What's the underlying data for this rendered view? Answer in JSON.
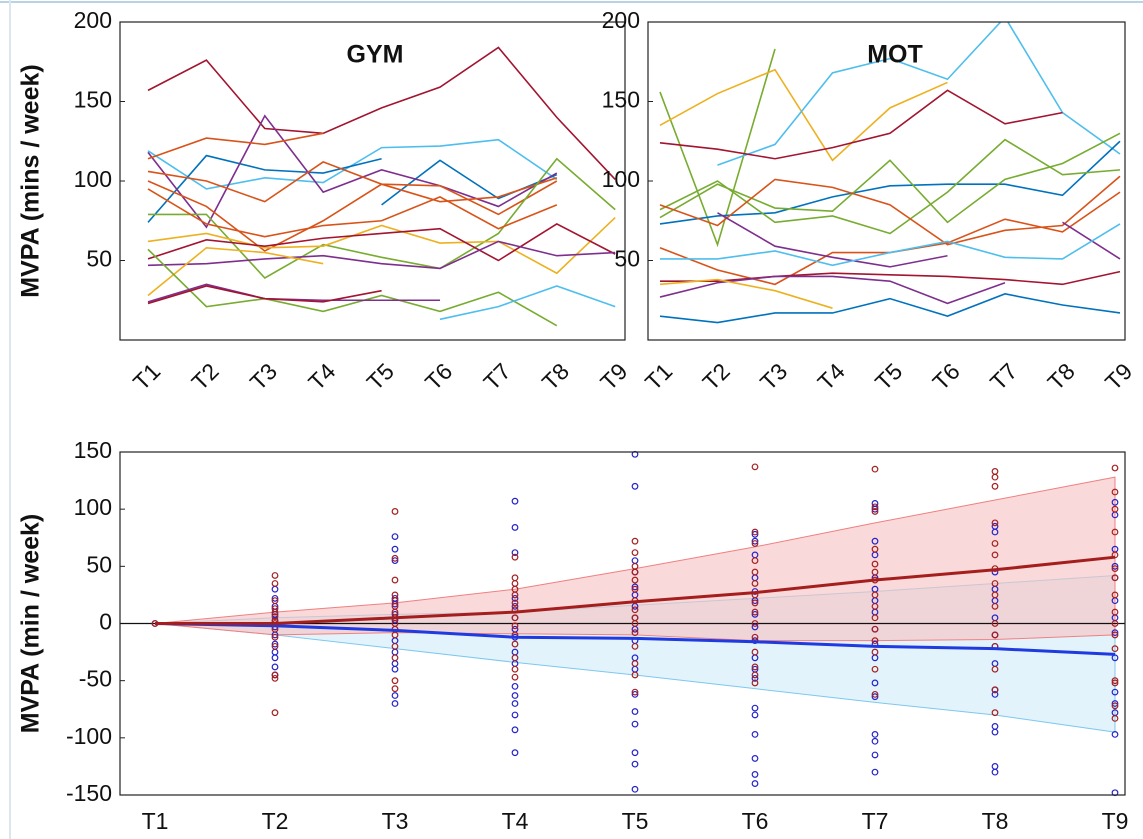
{
  "chart_data": [
    {
      "type": "line",
      "title": "GYM",
      "ylabel": "MVPA (mins / week)",
      "categories": [
        "T1",
        "T2",
        "T3",
        "T4",
        "T5",
        "T6",
        "T7",
        "T8",
        "T9"
      ],
      "ylim": [
        0,
        200
      ],
      "yticks": [
        50,
        100,
        150,
        200
      ],
      "series": [
        {
          "color": "#A2142F",
          "values": [
            157,
            176,
            133,
            130,
            146,
            159,
            184,
            140,
            101
          ]
        },
        {
          "color": "#4DBEEE",
          "values": [
            119,
            95,
            102,
            99,
            121,
            122,
            126,
            101,
            null
          ]
        },
        {
          "color": "#0072BD",
          "values": [
            74,
            116,
            107,
            105,
            114,
            null,
            null,
            null,
            null
          ]
        },
        {
          "color": "#0072BD",
          "values": [
            null,
            null,
            null,
            null,
            85,
            113,
            89,
            104,
            null
          ]
        },
        {
          "color": "#7E2F8E",
          "values": [
            118,
            71,
            141,
            93,
            107,
            97,
            84,
            105,
            null
          ]
        },
        {
          "color": "#D95319",
          "values": [
            114,
            127,
            123,
            130,
            null,
            null,
            null,
            null,
            null
          ]
        },
        {
          "color": "#D95319",
          "values": [
            106,
            100,
            87,
            112,
            98,
            97,
            79,
            100,
            null
          ]
        },
        {
          "color": "#D95319",
          "values": [
            100,
            84,
            56,
            75,
            98,
            87,
            90,
            102,
            null
          ]
        },
        {
          "color": "#77AC30",
          "values": [
            79,
            79,
            39,
            60,
            52,
            45,
            67,
            114,
            82
          ]
        },
        {
          "color": "#EDB120",
          "values": [
            62,
            67,
            58,
            59,
            72,
            61,
            62,
            42,
            77
          ]
        },
        {
          "color": "#A2142F",
          "values": [
            51,
            63,
            59,
            64,
            67,
            70,
            50,
            73,
            54
          ]
        },
        {
          "color": "#7E2F8E",
          "values": [
            47,
            48,
            51,
            53,
            48,
            45,
            62,
            53,
            55
          ]
        },
        {
          "color": "#EDB120",
          "values": [
            28,
            58,
            55,
            48,
            null,
            null,
            null,
            null,
            null
          ]
        },
        {
          "color": "#77AC30",
          "values": [
            57,
            21,
            26,
            18,
            28,
            18,
            30,
            9,
            null
          ]
        },
        {
          "color": "#7E2F8E",
          "values": [
            24,
            35,
            26,
            25,
            25,
            25,
            null,
            null,
            null
          ]
        },
        {
          "color": "#A2142F",
          "values": [
            23,
            34,
            26,
            24,
            31,
            null,
            null,
            null,
            null
          ]
        },
        {
          "color": "#4DBEEE",
          "values": [
            null,
            null,
            null,
            null,
            null,
            13,
            21,
            34,
            21
          ]
        },
        {
          "color": "#D95319",
          "values": [
            95,
            73,
            65,
            72,
            75,
            90,
            70,
            85,
            null
          ]
        }
      ]
    },
    {
      "type": "line",
      "title": "MOT",
      "categories": [
        "T1",
        "T2",
        "T3",
        "T4",
        "T5",
        "T6",
        "T7",
        "T8",
        "T9"
      ],
      "ylim": [
        0,
        200
      ],
      "yticks": [
        50,
        100,
        150,
        200
      ],
      "series": [
        {
          "color": "#77AC30",
          "values": [
            156,
            60,
            183,
            null,
            null,
            null,
            null,
            null,
            null
          ]
        },
        {
          "color": "#EDB120",
          "values": [
            135,
            155,
            170,
            113,
            146,
            162,
            null,
            null,
            null
          ]
        },
        {
          "color": "#4DBEEE",
          "values": [
            null,
            110,
            123,
            168,
            177,
            164,
            203,
            143,
            117
          ]
        },
        {
          "color": "#A2142F",
          "values": [
            124,
            120,
            114,
            121,
            130,
            157,
            136,
            143,
            null
          ]
        },
        {
          "color": "#0072BD",
          "values": [
            73,
            78,
            80,
            90,
            97,
            98,
            98,
            91,
            125
          ]
        },
        {
          "color": "#77AC30",
          "values": [
            82,
            100,
            74,
            78,
            67,
            93,
            126,
            104,
            107
          ]
        },
        {
          "color": "#77AC30",
          "values": [
            77,
            98,
            83,
            81,
            113,
            74,
            101,
            111,
            130
          ]
        },
        {
          "color": "#D95319",
          "values": [
            85,
            72,
            101,
            96,
            85,
            60,
            69,
            72,
            103
          ]
        },
        {
          "color": "#D95319",
          "values": [
            58,
            44,
            35,
            55,
            55,
            61,
            76,
            68,
            93
          ]
        },
        {
          "color": "#7E2F8E",
          "values": [
            null,
            80,
            59,
            52,
            46,
            53,
            null,
            74,
            51
          ]
        },
        {
          "color": "#4DBEEE",
          "values": [
            51,
            51,
            56,
            47,
            55,
            62,
            52,
            51,
            73
          ]
        },
        {
          "color": "#A2142F",
          "values": [
            37,
            37,
            40,
            42,
            41,
            40,
            38,
            35,
            43
          ]
        },
        {
          "color": "#7E2F8E",
          "values": [
            27,
            36,
            40,
            40,
            37,
            23,
            36,
            null,
            null
          ]
        },
        {
          "color": "#EDB120",
          "values": [
            35,
            38,
            31,
            20,
            null,
            null,
            null,
            null,
            null
          ]
        },
        {
          "color": "#0072BD",
          "values": [
            15,
            11,
            17,
            17,
            26,
            15,
            29,
            22,
            17
          ]
        }
      ]
    },
    {
      "type": "band-scatter",
      "ylabel": "MVPA (min / week)",
      "categories": [
        "T1",
        "T2",
        "T3",
        "T4",
        "T5",
        "T6",
        "T7",
        "T8",
        "T9"
      ],
      "ylim": [
        -150,
        150
      ],
      "yticks": [
        -150,
        -100,
        -50,
        0,
        50,
        100,
        150
      ],
      "zero_line": true,
      "groups": [
        {
          "color": "#2F6FD8",
          "line_color": "#1F3AE0",
          "point_color": "#2222CC",
          "band_color": "#D3ECF9",
          "edge_color": "#7CC8EE",
          "mean": [
            0,
            -2,
            -6,
            -12,
            -13,
            -16,
            -20,
            -22,
            -27
          ],
          "upper": [
            0,
            5,
            8,
            10,
            16,
            22,
            28,
            35,
            42
          ],
          "lower": [
            0,
            -10,
            -22,
            -34,
            -45,
            -57,
            -69,
            -80,
            -95
          ],
          "points": [
            [
              0
            ],
            [
              30,
              22,
              15,
              8,
              3,
              -3,
              -10,
              -18,
              -25,
              -30,
              -38,
              -45
            ],
            [
              76,
              65,
              55,
              22,
              17,
              8,
              3,
              -5,
              -15,
              -25,
              -35,
              -40,
              -63,
              -70
            ],
            [
              107,
              84,
              62,
              22,
              15,
              5,
              -5,
              -12,
              -25,
              -35,
              -55,
              -63,
              -70,
              -80,
              -93,
              -113
            ],
            [
              148,
              120,
              55,
              45,
              32,
              25,
              15,
              5,
              -5,
              -15,
              -30,
              -40,
              -62,
              -77,
              -88,
              -113,
              -123,
              -145
            ],
            [
              78,
              72,
              60,
              40,
              28,
              20,
              8,
              -3,
              -15,
              -30,
              -40,
              -48,
              -74,
              -80,
              -97,
              -118,
              -132,
              -140
            ],
            [
              105,
              100,
              72,
              60,
              40,
              30,
              20,
              10,
              -5,
              -18,
              -30,
              -52,
              -64,
              -97,
              -103,
              -115,
              -130
            ],
            [
              85,
              80,
              45,
              30,
              20,
              5,
              -10,
              -20,
              -35,
              -58,
              -62,
              -90,
              -95,
              -125,
              -130
            ],
            [
              106,
              95,
              65,
              50,
              40,
              20,
              5,
              -8,
              -30,
              -60,
              -70,
              -78,
              -97,
              -148
            ]
          ]
        },
        {
          "color": "#B22222",
          "line_color": "#A51E1E",
          "point_color": "#A51E1E",
          "band_color": "#F6C4C4",
          "edge_color": "#F08080",
          "mean": [
            0,
            0,
            5,
            10,
            19,
            27,
            38,
            47,
            58
          ],
          "upper": [
            0,
            10,
            18,
            30,
            48,
            67,
            88,
            108,
            128
          ],
          "lower": [
            0,
            -10,
            -8,
            -9,
            -10,
            -15,
            -15,
            -14,
            -10
          ],
          "points": [
            [
              0
            ],
            [
              42,
              35,
              20,
              13,
              10,
              6,
              2,
              0,
              -5,
              -12,
              -20,
              -45,
              -48,
              -78
            ],
            [
              98,
              57,
              38,
              25,
              20,
              15,
              10,
              5,
              0,
              -5,
              -10,
              -20,
              -30,
              -50,
              -57
            ],
            [
              58,
              40,
              35,
              30,
              25,
              18,
              12,
              5,
              -2,
              -10,
              -18,
              -30,
              -40,
              -47
            ],
            [
              72,
              62,
              50,
              45,
              38,
              30,
              20,
              12,
              5,
              0,
              -8,
              -20,
              -35,
              -45,
              -60
            ],
            [
              137,
              80,
              70,
              55,
              45,
              35,
              25,
              18,
              10,
              0,
              -12,
              -25,
              -38,
              -45,
              -52
            ],
            [
              135,
              102,
              98,
              65,
              52,
              45,
              38,
              25,
              15,
              5,
              -5,
              -15,
              -25,
              -40,
              -62
            ],
            [
              133,
              128,
              120,
              88,
              70,
              60,
              48,
              35,
              25,
              15,
              0,
              -10,
              -20,
              -40,
              -58,
              -78
            ],
            [
              136,
              115,
              100,
              80,
              60,
              48,
              40,
              25,
              10,
              0,
              -10,
              -22,
              -50,
              -52,
              -72,
              -83
            ]
          ]
        }
      ]
    }
  ]
}
